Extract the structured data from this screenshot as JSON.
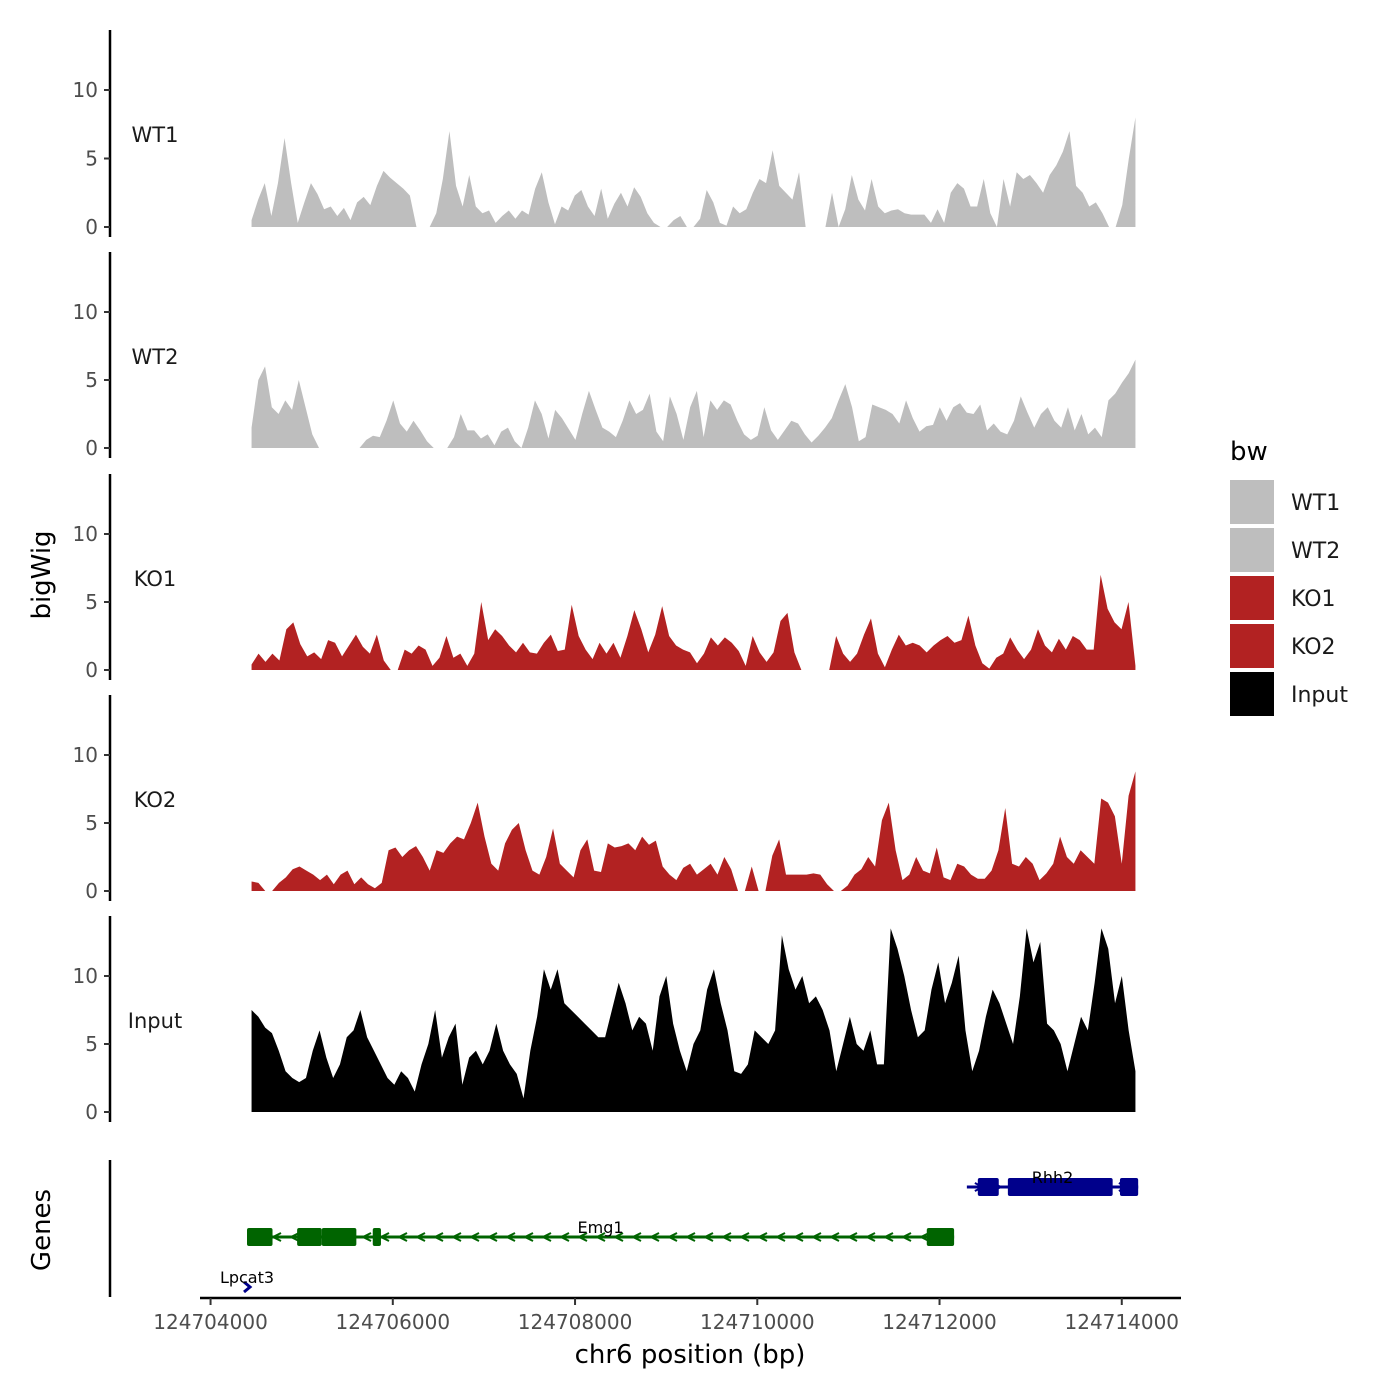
{
  "chart_data": {
    "type": "area",
    "ylabel": "bigWig",
    "xlabel": "chr6 position (bp)",
    "gene_panel_label": "Genes",
    "xlim": [
      124703950,
      124714650
    ],
    "x_ticks": [
      124704000,
      124706000,
      124708000,
      124710000,
      124712000,
      124714000
    ],
    "x_tick_labels": [
      "124704000",
      "124706000",
      "124708000",
      124710000,
      "124712000",
      "124714000"
    ],
    "ylim": [
      0,
      14
    ],
    "y_ticks": [
      0,
      5,
      10
    ],
    "y_tick_labels": [
      "0",
      "5",
      "10"
    ],
    "track_start": 124704450,
    "track_end": 124714150,
    "legend": {
      "title": "bw",
      "entries": [
        {
          "label": "WT1",
          "color": "#bebebe"
        },
        {
          "label": "WT2",
          "color": "#bebebe"
        },
        {
          "label": "KO1",
          "color": "#b22222"
        },
        {
          "label": "KO2",
          "color": "#b22222"
        },
        {
          "label": "Input",
          "color": "#000000"
        }
      ]
    },
    "series": [
      {
        "name": "WT1",
        "color": "#bebebe",
        "values": [
          0.5,
          2.0,
          3.2,
          0.8,
          3.2,
          6.5,
          3.2,
          0.3,
          1.8,
          3.2,
          2.4,
          1.3,
          1.5,
          0.8,
          1.4,
          0.5,
          1.8,
          2.2,
          1.6,
          3.0,
          4.1,
          3.6,
          3.2,
          2.8,
          2.3,
          0,
          0,
          0,
          1.0,
          3.5,
          7.0,
          3.0,
          1.5,
          3.8,
          1.5,
          1.0,
          1.2,
          0.3,
          0.8,
          1.2,
          0.6,
          1.2,
          0.9,
          2.8,
          4.0,
          1.8,
          0.2,
          1.5,
          1.2,
          2.3,
          2.7,
          1.5,
          0.8,
          2.8,
          0.6,
          1.7,
          2.5,
          1.5,
          2.9,
          2.2,
          1.0,
          0.3,
          0,
          0,
          0.5,
          0.8,
          0,
          0,
          0.6,
          2.7,
          1.8,
          0.3,
          0.1,
          1.5,
          1.0,
          1.3,
          2.5,
          3.5,
          3.2,
          5.6,
          3.0,
          2.5,
          2.0,
          4.0,
          0,
          0,
          0,
          0,
          2.5,
          0,
          1.3,
          3.8,
          2.0,
          1.2,
          3.5,
          1.5,
          1.0,
          1.2,
          1.3,
          1.0,
          0.9,
          0.9,
          0.9,
          0.3,
          1.3,
          0.3,
          2.5,
          3.2,
          2.8,
          1.5,
          1.5,
          3.5,
          1.0,
          0,
          3.5,
          1.5,
          4.0,
          3.5,
          3.8,
          3.2,
          2.5,
          3.8,
          4.5,
          5.5,
          7.0,
          3.0,
          2.5,
          1.5,
          1.8,
          1.0,
          0,
          0,
          1.6,
          5.0,
          8.0
        ]
      },
      {
        "name": "WT2",
        "color": "#bebebe",
        "values": [
          1.5,
          5.0,
          6.0,
          3.0,
          2.5,
          3.5,
          2.8,
          5.0,
          3.0,
          1.0,
          0,
          0,
          0,
          0,
          0,
          0,
          0,
          0.6,
          0.9,
          0.8,
          2.0,
          3.5,
          1.8,
          1.2,
          2.0,
          1.3,
          0.5,
          0,
          0,
          0,
          0.8,
          2.5,
          1.3,
          1.3,
          0.7,
          1.0,
          0.2,
          1.2,
          1.5,
          0.5,
          0,
          1.5,
          3.5,
          2.5,
          0.7,
          2.8,
          2.2,
          1.4,
          0.6,
          2.5,
          4.2,
          2.8,
          1.5,
          1.2,
          0.8,
          2.0,
          3.5,
          2.5,
          2.8,
          4.0,
          1.2,
          0.5,
          3.8,
          2.5,
          0.6,
          3.0,
          4.2,
          0.8,
          3.5,
          2.8,
          3.5,
          3.2,
          2.0,
          1.0,
          0.6,
          0.9,
          3.0,
          1.3,
          0.6,
          1.3,
          2.0,
          1.8,
          1.0,
          0.4,
          0.9,
          1.5,
          2.2,
          3.5,
          4.7,
          3.0,
          0.5,
          0.8,
          3.2,
          3.0,
          2.8,
          2.5,
          1.8,
          3.5,
          2.2,
          1.2,
          1.6,
          1.7,
          3.0,
          2.0,
          3.0,
          3.3,
          2.6,
          2.5,
          3.2,
          1.3,
          1.8,
          1.2,
          1.0,
          2.0,
          3.8,
          2.6,
          1.5,
          2.5,
          3.0,
          2.0,
          1.5,
          3.0,
          1.3,
          2.5,
          1.0,
          1.5,
          0.8,
          3.5,
          4.0,
          4.8,
          5.5,
          6.5
        ]
      },
      {
        "name": "KO1",
        "color": "#b22222",
        "values": [
          0.4,
          1.2,
          0.6,
          1.2,
          0.7,
          3.0,
          3.5,
          1.9,
          1.0,
          1.3,
          0.8,
          2.2,
          2.0,
          1.0,
          1.8,
          2.6,
          1.7,
          1.2,
          2.6,
          0.7,
          0,
          0,
          1.5,
          1.2,
          1.8,
          1.5,
          0.3,
          0.9,
          2.5,
          0.9,
          1.2,
          0.3,
          1.2,
          5.0,
          2.2,
          3.0,
          2.5,
          1.8,
          1.3,
          2.0,
          1.3,
          1.2,
          2.0,
          2.6,
          1.4,
          1.5,
          4.8,
          2.5,
          1.5,
          0.8,
          2.0,
          1.2,
          2.0,
          0.9,
          2.5,
          4.4,
          3.0,
          1.3,
          2.6,
          4.7,
          2.5,
          1.8,
          1.5,
          1.3,
          0.5,
          1.2,
          2.4,
          1.8,
          2.4,
          2.0,
          1.4,
          0.3,
          2.5,
          1.3,
          0.6,
          1.3,
          3.6,
          4.2,
          1.3,
          0,
          0,
          0,
          0,
          0,
          2.5,
          1.2,
          0.6,
          1.2,
          2.6,
          3.8,
          1.2,
          0.2,
          1.5,
          2.6,
          1.8,
          2.0,
          1.8,
          1.3,
          1.8,
          2.2,
          2.5,
          2.0,
          2.2,
          4.0,
          1.8,
          0.5,
          0.1,
          0.9,
          1.2,
          2.4,
          1.5,
          0.8,
          1.5,
          3.0,
          1.8,
          1.3,
          2.3,
          1.5,
          2.5,
          2.2,
          1.5,
          1.5,
          7.0,
          4.5,
          3.5,
          3.0,
          5.0,
          0.3
        ]
      },
      {
        "name": "KO2",
        "color": "#b22222",
        "values": [
          0.7,
          0.6,
          0,
          0,
          0.6,
          1.0,
          1.6,
          1.8,
          1.5,
          1.2,
          0.8,
          1.2,
          0.5,
          1.2,
          1.5,
          0.5,
          1.0,
          0.5,
          0.2,
          0.6,
          3.0,
          3.2,
          2.5,
          3.0,
          3.3,
          2.5,
          1.5,
          3.0,
          2.8,
          3.5,
          4.0,
          3.8,
          5.0,
          6.5,
          4.0,
          2.0,
          1.5,
          3.5,
          4.5,
          5.0,
          3.0,
          1.5,
          1.2,
          2.5,
          4.6,
          2.0,
          1.5,
          1.0,
          3.0,
          3.8,
          1.5,
          1.4,
          3.5,
          3.2,
          3.3,
          3.5,
          3.0,
          4.0,
          3.4,
          3.7,
          1.8,
          1.2,
          0.8,
          1.7,
          2.0,
          1.2,
          1.6,
          2.0,
          1.2,
          2.5,
          1.6,
          0,
          0,
          1.8,
          0,
          0,
          2.6,
          3.8,
          1.2,
          1.2,
          1.2,
          1.2,
          1.3,
          1.2,
          0.5,
          0,
          0,
          0.4,
          1.2,
          1.6,
          2.5,
          1.8,
          5.2,
          6.5,
          3.0,
          0.8,
          1.2,
          2.5,
          1.5,
          1.3,
          3.2,
          1.0,
          0.8,
          2.0,
          1.8,
          1.2,
          0.9,
          0.9,
          1.5,
          3.0,
          6.1,
          2.0,
          1.8,
          2.5,
          2.0,
          0.8,
          1.3,
          2.0,
          4.0,
          2.5,
          2.0,
          3.0,
          2.5,
          2.0,
          6.8,
          6.5,
          5.5,
          2.0,
          7.0,
          8.8
        ]
      },
      {
        "name": "Input",
        "color": "#000000",
        "values": [
          7.5,
          7.0,
          6.2,
          5.8,
          4.5,
          3.0,
          2.5,
          2.2,
          2.5,
          4.5,
          6.0,
          4.0,
          2.5,
          3.5,
          5.5,
          6.0,
          7.5,
          5.5,
          4.5,
          3.5,
          2.5,
          2.0,
          3.0,
          2.5,
          1.5,
          3.5,
          5.0,
          7.5,
          4.0,
          5.5,
          6.5,
          2.0,
          4.0,
          4.5,
          3.5,
          4.5,
          6.5,
          4.5,
          3.5,
          2.8,
          1.0,
          4.5,
          7.0,
          10.5,
          9.0,
          10.5,
          8.0,
          7.5,
          7.0,
          6.5,
          6.0,
          5.5,
          5.5,
          7.5,
          9.5,
          8.0,
          6.0,
          7.0,
          6.5,
          4.5,
          8.5,
          10.0,
          6.5,
          4.5,
          3.0,
          5.0,
          6.0,
          9.0,
          10.5,
          8.0,
          6.0,
          3.0,
          2.8,
          3.5,
          6.0,
          5.5,
          5.0,
          6.0,
          13.0,
          10.5,
          9.0,
          10.0,
          8.0,
          8.5,
          7.5,
          6.0,
          3.0,
          5.0,
          7.0,
          5.0,
          4.5,
          6.0,
          3.5,
          3.5,
          13.5,
          12.0,
          10.0,
          7.5,
          5.5,
          6.0,
          9.0,
          11.0,
          8.0,
          9.5,
          11.5,
          6.0,
          3.0,
          4.5,
          7.0,
          9.0,
          8.0,
          6.5,
          5.0,
          8.5,
          13.5,
          11.0,
          12.5,
          6.5,
          6.0,
          5.0,
          3.0,
          5.0,
          7.0,
          6.0,
          9.5,
          13.5,
          12.0,
          8.0,
          10.0,
          6.0,
          3.0
        ]
      }
    ],
    "genes": [
      {
        "name": "Rhh2",
        "strand": "+",
        "color": "#00008b",
        "start": 124712300,
        "end": 124714180,
        "exons": [
          [
            124712420,
            124712650
          ],
          [
            124712750,
            124713900
          ],
          [
            124713980,
            124714180
          ]
        ]
      },
      {
        "name": "Emg1",
        "strand": "-",
        "color": "#006400",
        "start": 124704400,
        "end": 124712160,
        "exons": [
          [
            124704400,
            124704680
          ],
          [
            124704950,
            124705220
          ],
          [
            124705220,
            124705600
          ],
          [
            124705780,
            124705870
          ],
          [
            124711860,
            124712160
          ]
        ]
      },
      {
        "name": "Lpcat3",
        "strand": "+",
        "color": "#00008b",
        "start": 124704350,
        "end": 124704450,
        "exons": []
      }
    ]
  }
}
